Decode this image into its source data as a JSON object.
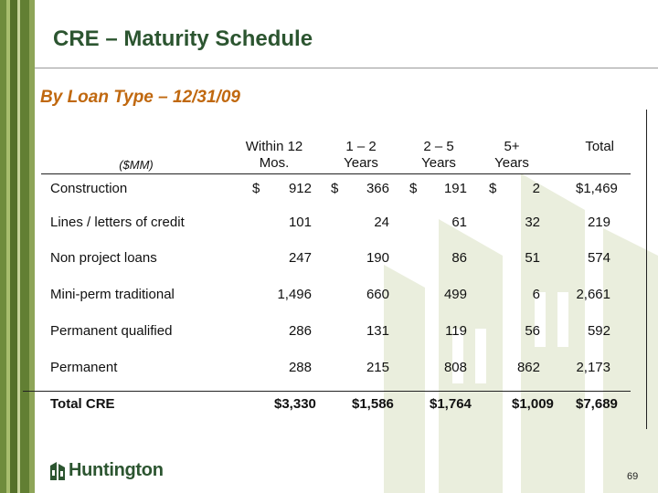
{
  "slide": {
    "title": "CRE – Maturity Schedule",
    "subtitle": "By Loan Type – 12/31/09",
    "page_number": "69",
    "logo_text": "Huntington"
  },
  "colors": {
    "title": "#2c5530",
    "subtitle": "#c0680f",
    "stripe_green": "#6f8b3c",
    "watermark": "#eaeedd"
  },
  "table": {
    "unit_label": "($MM)",
    "columns": [
      {
        "line1": "Within 12",
        "line2": "Mos."
      },
      {
        "line1": "1 – 2",
        "line2": "Years"
      },
      {
        "line1": "2 – 5",
        "line2": "Years"
      },
      {
        "line1": "5+",
        "line2": "Years"
      },
      {
        "line1": "",
        "line2": "Total"
      }
    ],
    "rows": [
      {
        "label": "Construction",
        "cells": [
          {
            "c": "$",
            "v": "912"
          },
          {
            "c": "$",
            "v": "366"
          },
          {
            "c": "$",
            "v": "191"
          },
          {
            "c": "$",
            "v": "2"
          },
          {
            "c": "",
            "v": "$1,469"
          }
        ]
      },
      {
        "label": "Lines / letters of credit",
        "cells": [
          {
            "c": "",
            "v": "101"
          },
          {
            "c": "",
            "v": "24"
          },
          {
            "c": "",
            "v": "61"
          },
          {
            "c": "",
            "v": "32"
          },
          {
            "c": "",
            "v": "219"
          }
        ]
      },
      {
        "label": "Non project loans",
        "cells": [
          {
            "c": "",
            "v": "247"
          },
          {
            "c": "",
            "v": "190"
          },
          {
            "c": "",
            "v": "86"
          },
          {
            "c": "",
            "v": "51"
          },
          {
            "c": "",
            "v": "574"
          }
        ]
      },
      {
        "label": "Mini-perm traditional",
        "cells": [
          {
            "c": "",
            "v": "1,496"
          },
          {
            "c": "",
            "v": "660"
          },
          {
            "c": "",
            "v": "499"
          },
          {
            "c": "",
            "v": "6"
          },
          {
            "c": "",
            "v": "2,661"
          }
        ]
      },
      {
        "label": "Permanent qualified",
        "cells": [
          {
            "c": "",
            "v": "286"
          },
          {
            "c": "",
            "v": "131"
          },
          {
            "c": "",
            "v": "119"
          },
          {
            "c": "",
            "v": "56"
          },
          {
            "c": "",
            "v": "592"
          }
        ]
      },
      {
        "label": "Permanent",
        "cells": [
          {
            "c": "",
            "v": "288"
          },
          {
            "c": "",
            "v": "215"
          },
          {
            "c": "",
            "v": "808"
          },
          {
            "c": "",
            "v": "862"
          },
          {
            "c": "",
            "v": "2,173"
          }
        ]
      }
    ],
    "total_row": {
      "label": "Total CRE",
      "cells": [
        {
          "c": "",
          "v": "$3,330"
        },
        {
          "c": "",
          "v": "$1,586"
        },
        {
          "c": "",
          "v": "$1,764"
        },
        {
          "c": "",
          "v": "$1,009"
        },
        {
          "c": "",
          "v": "$7,689"
        }
      ]
    }
  }
}
